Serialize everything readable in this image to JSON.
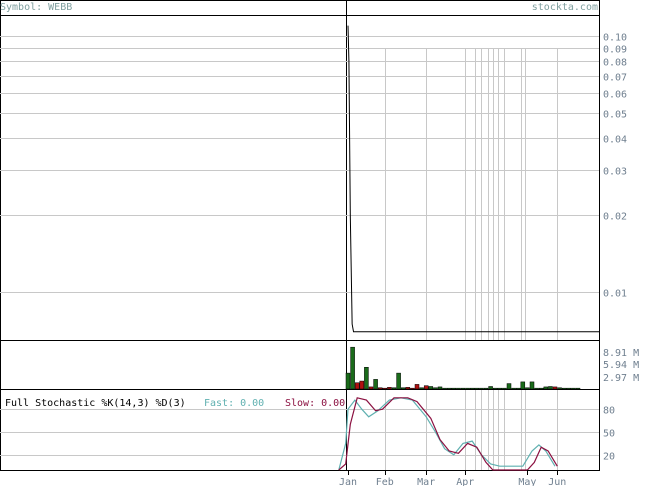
{
  "header": {
    "symbol_label": "Symbol: WEBB",
    "watermark": "stockta.com"
  },
  "stochastic": {
    "title": "Full Stochastic %K(14,3) %D(3)",
    "fast_label": "Fast: 0.00",
    "slow_label": "Slow: 0.00"
  },
  "colors": {
    "grid": "#c8c8c8",
    "price_line": "#000000",
    "volume_up": "#1a6b1a",
    "volume_down": "#b01010",
    "fast_line": "#5fb0b0",
    "slow_line": "#8b1040",
    "tick_text": "#6f7f8f"
  },
  "chart_data": [
    {
      "type": "line",
      "panel": "price",
      "scale": "log",
      "ylim": [
        0.0065,
        0.12
      ],
      "y_ticks": [
        "0.10",
        "0.09",
        "0.08",
        "0.07",
        "0.06",
        "0.05",
        "0.04",
        "0.03",
        "0.02",
        "0.01"
      ],
      "y_tick_values": [
        0.1,
        0.09,
        0.08,
        0.07,
        0.06,
        0.05,
        0.04,
        0.03,
        0.02,
        0.01
      ],
      "series": [
        {
          "points": [
            [
              0.0,
              0.11
            ],
            [
              0.2,
              0.08
            ],
            [
              0.5,
              0.02
            ],
            [
              0.9,
              0.0075
            ],
            [
              1.2,
              0.007
            ],
            [
              100,
              0.007
            ]
          ]
        }
      ]
    },
    {
      "type": "bar",
      "panel": "volume",
      "y_ticks": [
        "8.91 M",
        "5.94 M",
        "2.97 M"
      ],
      "y_tick_values": [
        8.91,
        5.94,
        2.97
      ],
      "ylim": [
        0,
        11
      ],
      "unit": "M",
      "x": [
        0,
        1,
        2,
        3,
        4,
        5,
        6,
        7,
        8,
        9,
        10,
        11,
        12,
        13,
        14,
        15,
        16,
        17,
        18,
        19,
        20,
        21,
        22,
        23,
        24,
        25,
        26,
        27,
        28,
        29,
        30,
        31,
        32,
        33,
        34,
        35,
        36,
        37,
        38,
        39,
        40,
        41,
        42,
        43,
        44,
        45,
        46,
        47,
        48,
        49,
        50
      ],
      "values": [
        3.8,
        10.0,
        1.5,
        1.9,
        5.2,
        0.5,
        2.3,
        0.3,
        0.2,
        0.4,
        0.3,
        3.8,
        0.3,
        0.4,
        0.2,
        1.1,
        0.3,
        0.8,
        0.6,
        0.3,
        0.5,
        0.2,
        0.2,
        0.2,
        0.2,
        0.2,
        0.2,
        0.2,
        0.2,
        0.2,
        0.2,
        0.6,
        0.2,
        0.2,
        0.2,
        1.3,
        0.2,
        0.2,
        1.7,
        0.3,
        1.7,
        0.2,
        0.2,
        0.5,
        0.6,
        0.5,
        0.3,
        0.2,
        0.2,
        0.2,
        0.2
      ],
      "direction": [
        "up",
        "up",
        "down",
        "down",
        "up",
        "down",
        "up",
        "down",
        "down",
        "down",
        "up",
        "up",
        "up",
        "down",
        "down",
        "down",
        "up",
        "down",
        "up",
        "up",
        "up",
        "up",
        "up",
        "up",
        "up",
        "up",
        "up",
        "up",
        "up",
        "up",
        "up",
        "up",
        "up",
        "up",
        "up",
        "up",
        "up",
        "up",
        "up",
        "up",
        "up",
        "up",
        "up",
        "up",
        "up",
        "down",
        "up",
        "up",
        "up",
        "up",
        "up"
      ]
    },
    {
      "type": "line",
      "panel": "stochastic",
      "ylim": [
        0,
        100
      ],
      "y_ticks": [
        "80",
        "50",
        "20"
      ],
      "y_tick_values": [
        80,
        50,
        20
      ],
      "series": [
        {
          "name": "Fast",
          "points": [
            [
              -2,
              0
            ],
            [
              -0.5,
              35
            ],
            [
              0,
              80
            ],
            [
              1.5,
              92
            ],
            [
              3,
              80
            ],
            [
              4.5,
              70
            ],
            [
              6.5,
              78
            ],
            [
              9,
              92
            ],
            [
              11.5,
              95
            ],
            [
              14,
              92
            ],
            [
              17,
              70
            ],
            [
              19,
              50
            ],
            [
              21,
              28
            ],
            [
              23,
              20
            ],
            [
              25,
              35
            ],
            [
              27,
              38
            ],
            [
              29,
              20
            ],
            [
              31,
              8
            ],
            [
              33,
              5
            ],
            [
              35,
              5
            ],
            [
              36,
              5
            ],
            [
              38,
              5
            ],
            [
              40,
              25
            ],
            [
              41.5,
              33
            ],
            [
              43,
              25
            ],
            [
              45,
              5
            ]
          ]
        },
        {
          "name": "Slow",
          "points": [
            [
              -2,
              0
            ],
            [
              -0.5,
              8
            ],
            [
              0.5,
              60
            ],
            [
              2,
              95
            ],
            [
              4,
              92
            ],
            [
              6,
              78
            ],
            [
              7.5,
              80
            ],
            [
              10,
              95
            ],
            [
              13,
              95
            ],
            [
              15,
              90
            ],
            [
              18,
              68
            ],
            [
              20,
              40
            ],
            [
              22,
              25
            ],
            [
              24,
              22
            ],
            [
              26,
              35
            ],
            [
              28,
              30
            ],
            [
              30,
              10
            ],
            [
              31.5,
              0
            ],
            [
              39,
              0
            ],
            [
              40.5,
              10
            ],
            [
              42,
              30
            ],
            [
              43.5,
              25
            ],
            [
              45.5,
              5
            ]
          ]
        }
      ]
    }
  ],
  "x_axis": {
    "labels": [
      "Jan",
      "Feb",
      "Mar",
      "Apr",
      "May",
      "Jun"
    ],
    "label_x": [
      0,
      8,
      17,
      25.5,
      39,
      45.5
    ],
    "gridlines": [
      8,
      17,
      25.5,
      27.5,
      29,
      30.5,
      31.5,
      32.5,
      34,
      37.5,
      38.5,
      45.5
    ]
  }
}
